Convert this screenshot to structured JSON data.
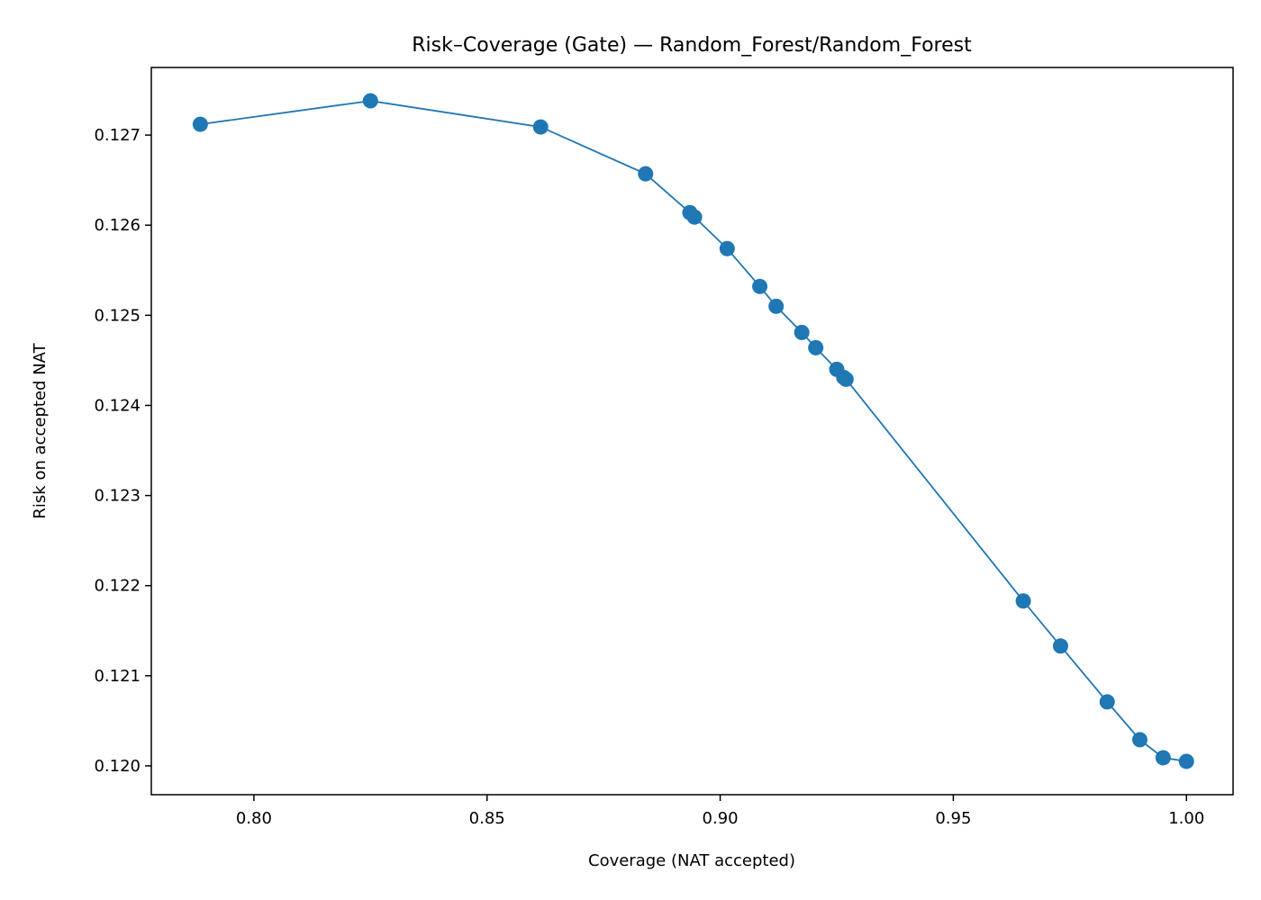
{
  "chart_data": {
    "type": "line",
    "title": "Risk–Coverage (Gate) — Random_Forest/Random_Forest",
    "xlabel": "Coverage (NAT accepted)",
    "ylabel": "Risk on accepted NAT",
    "xlim": [
      0.778,
      1.01
    ],
    "ylim": [
      0.11968,
      0.12775
    ],
    "xticks": [
      0.8,
      0.85,
      0.9,
      0.95,
      1.0
    ],
    "xtick_labels": [
      "0.80",
      "0.85",
      "0.90",
      "0.95",
      "1.00"
    ],
    "yticks": [
      0.12,
      0.121,
      0.122,
      0.123,
      0.124,
      0.125,
      0.126,
      0.127
    ],
    "ytick_labels": [
      "0.120",
      "0.121",
      "0.122",
      "0.123",
      "0.124",
      "0.125",
      "0.126",
      "0.127"
    ],
    "grid": false,
    "legend": false,
    "color": "#1f77b4",
    "series": [
      {
        "x": [
          0.7885,
          0.825,
          0.8615,
          0.884,
          0.8935,
          0.8945,
          0.9015,
          0.9085,
          0.912,
          0.9175,
          0.9205,
          0.925,
          0.9265,
          0.927,
          0.965,
          0.973,
          0.983,
          0.99,
          0.995,
          1.0
        ],
        "y": [
          0.12712,
          0.12738,
          0.12709,
          0.12657,
          0.12614,
          0.12609,
          0.12574,
          0.12532,
          0.1251,
          0.12481,
          0.12464,
          0.1244,
          0.12431,
          0.12429,
          0.12183,
          0.12133,
          0.12071,
          0.12029,
          0.12009,
          0.12005
        ]
      }
    ]
  }
}
